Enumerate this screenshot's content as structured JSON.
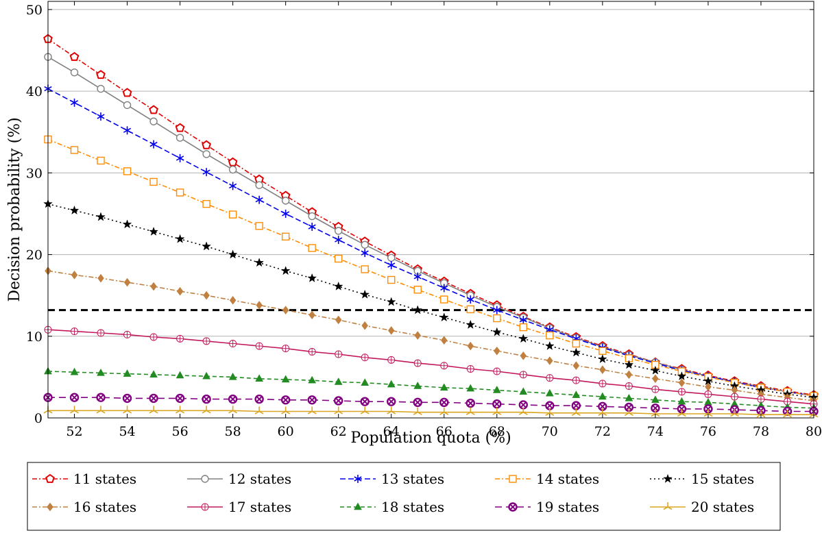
{
  "chart_data": {
    "type": "line",
    "xlabel": "Population quota (%)",
    "ylabel": "Decision probability (%)",
    "xlim": [
      51,
      80
    ],
    "ylim": [
      0,
      51
    ],
    "x_ticks": [
      52,
      54,
      56,
      58,
      60,
      62,
      64,
      66,
      68,
      70,
      72,
      74,
      76,
      78,
      80
    ],
    "y_ticks": [
      0,
      10,
      20,
      30,
      40,
      50
    ],
    "grid": "horizontal",
    "legend_placement": "bottom-outside",
    "x": [
      51,
      52,
      53,
      54,
      55,
      56,
      57,
      58,
      59,
      60,
      61,
      62,
      63,
      64,
      65,
      66,
      67,
      68,
      69,
      70,
      71,
      72,
      73,
      74,
      75,
      76,
      77,
      78,
      79,
      80
    ],
    "reference_line": {
      "y": 13.2,
      "color": "#000000",
      "style": "dashed"
    },
    "series": [
      {
        "name": "11 states",
        "color": "#e00000",
        "dash": "7 3 2 3",
        "marker": "pentagon",
        "values": [
          46.4,
          44.2,
          42.0,
          39.8,
          37.7,
          35.5,
          33.4,
          31.3,
          29.2,
          27.2,
          25.2,
          23.4,
          21.6,
          19.9,
          18.2,
          16.7,
          15.2,
          13.8,
          12.4,
          11.1,
          9.9,
          8.8,
          7.8,
          6.8,
          6.0,
          5.2,
          4.5,
          3.9,
          3.3,
          2.8
        ]
      },
      {
        "name": "12 states",
        "color": "#808080",
        "dash": "",
        "marker": "circle",
        "values": [
          44.2,
          42.3,
          40.3,
          38.3,
          36.3,
          34.3,
          32.3,
          30.4,
          28.5,
          26.6,
          24.7,
          22.9,
          21.2,
          19.6,
          18.0,
          16.5,
          15.0,
          13.6,
          12.3,
          11.0,
          9.8,
          8.7,
          7.7,
          6.8,
          5.9,
          5.1,
          4.4,
          3.8,
          3.2,
          2.7
        ]
      },
      {
        "name": "13 states",
        "color": "#0000ee",
        "dash": "8 4",
        "marker": "asterisk",
        "values": [
          40.3,
          38.6,
          36.9,
          35.2,
          33.5,
          31.8,
          30.1,
          28.4,
          26.7,
          25.0,
          23.4,
          21.8,
          20.2,
          18.7,
          17.3,
          15.9,
          14.5,
          13.2,
          12.0,
          10.8,
          9.7,
          8.6,
          7.6,
          6.7,
          5.8,
          5.1,
          4.4,
          3.7,
          3.2,
          2.7
        ]
      },
      {
        "name": "14 states",
        "color": "#ff8c00",
        "dash": "7 3 2 3",
        "marker": "square",
        "values": [
          34.1,
          32.8,
          31.5,
          30.2,
          28.9,
          27.6,
          26.2,
          24.9,
          23.5,
          22.2,
          20.8,
          19.5,
          18.2,
          16.9,
          15.7,
          14.5,
          13.3,
          12.2,
          11.1,
          10.1,
          9.1,
          8.2,
          7.3,
          6.5,
          5.7,
          5.0,
          4.3,
          3.7,
          3.2,
          2.7
        ]
      },
      {
        "name": "15 states",
        "color": "#000000",
        "dash": "2 4",
        "marker": "star",
        "values": [
          26.2,
          25.4,
          24.6,
          23.7,
          22.8,
          21.9,
          21.0,
          20.0,
          19.0,
          18.0,
          17.1,
          16.1,
          15.1,
          14.2,
          13.2,
          12.3,
          11.4,
          10.5,
          9.7,
          8.8,
          8.0,
          7.2,
          6.5,
          5.8,
          5.1,
          4.5,
          3.9,
          3.4,
          2.9,
          2.5
        ]
      },
      {
        "name": "16 states",
        "color": "#c08040",
        "dash": "7 3 2 3",
        "marker": "diamond",
        "values": [
          18.0,
          17.5,
          17.1,
          16.6,
          16.1,
          15.5,
          15.0,
          14.4,
          13.8,
          13.2,
          12.6,
          12.0,
          11.3,
          10.7,
          10.1,
          9.5,
          8.8,
          8.2,
          7.6,
          7.0,
          6.4,
          5.9,
          5.3,
          4.8,
          4.3,
          3.8,
          3.4,
          2.9,
          2.5,
          2.1
        ]
      },
      {
        "name": "17 states",
        "color": "#c2185b",
        "dash": "",
        "marker": "oplus",
        "values": [
          10.8,
          10.6,
          10.4,
          10.2,
          9.9,
          9.7,
          9.4,
          9.1,
          8.8,
          8.5,
          8.1,
          7.8,
          7.4,
          7.1,
          6.7,
          6.4,
          6.0,
          5.7,
          5.3,
          4.9,
          4.6,
          4.2,
          3.9,
          3.5,
          3.2,
          2.9,
          2.6,
          2.3,
          2.0,
          1.7
        ]
      },
      {
        "name": "18 states",
        "color": "#228b22",
        "dash": "6 4",
        "marker": "triangle",
        "values": [
          5.7,
          5.6,
          5.5,
          5.4,
          5.3,
          5.2,
          5.1,
          5.0,
          4.8,
          4.7,
          4.6,
          4.4,
          4.3,
          4.1,
          3.9,
          3.7,
          3.6,
          3.4,
          3.2,
          3.0,
          2.8,
          2.6,
          2.4,
          2.2,
          2.0,
          1.9,
          1.7,
          1.5,
          1.3,
          1.2
        ]
      },
      {
        "name": "19 states",
        "color": "#800080",
        "dash": "10 6",
        "marker": "otimes",
        "values": [
          2.5,
          2.5,
          2.5,
          2.4,
          2.4,
          2.4,
          2.3,
          2.3,
          2.3,
          2.2,
          2.2,
          2.1,
          2.0,
          2.0,
          1.9,
          1.9,
          1.8,
          1.7,
          1.6,
          1.5,
          1.5,
          1.4,
          1.3,
          1.2,
          1.1,
          1.1,
          1.0,
          0.9,
          0.8,
          0.8
        ]
      },
      {
        "name": "20 states",
        "color": "#daa520",
        "dash": "",
        "marker": "tristar",
        "values": [
          0.9,
          0.9,
          0.9,
          0.9,
          0.9,
          0.9,
          0.9,
          0.9,
          0.8,
          0.8,
          0.8,
          0.8,
          0.8,
          0.8,
          0.7,
          0.7,
          0.7,
          0.7,
          0.7,
          0.6,
          0.6,
          0.6,
          0.6,
          0.5,
          0.5,
          0.5,
          0.5,
          0.4,
          0.4,
          0.4
        ]
      }
    ]
  }
}
